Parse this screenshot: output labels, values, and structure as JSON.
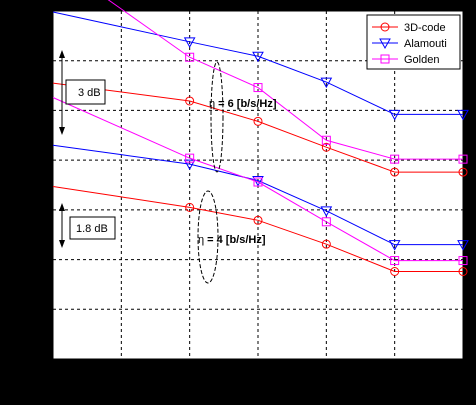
{
  "chart_data": {
    "type": "line",
    "title": "",
    "xlabel": "",
    "ylabel": "",
    "x": [
      1,
      2,
      3,
      4,
      5
    ],
    "xlim": [
      0,
      6
    ],
    "ylim": [
      0,
      7
    ],
    "grid": true,
    "legend_position": "top-right",
    "series": [
      {
        "name": "3D-code",
        "group": "eta6",
        "color": "#ff0000",
        "marker": "circle",
        "values": [
          5.37,
          5.19,
          4.78,
          4.26,
          3.76
        ]
      },
      {
        "name": "Alamouti",
        "group": "eta6",
        "color": "#0000ff",
        "marker": "triangle-down",
        "values": [
          6.68,
          6.38,
          6.09,
          5.57,
          4.92
        ]
      },
      {
        "name": "Golden",
        "group": "eta6",
        "color": "#ff00ff",
        "marker": "square",
        "values": [
          7.04,
          6.07,
          5.46,
          4.4,
          4.02
        ]
      },
      {
        "name": "3D-code",
        "group": "eta4",
        "color": "#ff0000",
        "marker": "circle",
        "values": [
          3.26,
          3.05,
          2.79,
          2.31,
          1.76
        ]
      },
      {
        "name": "Alamouti",
        "group": "eta4",
        "color": "#0000ff",
        "marker": "triangle-down",
        "values": [
          4.11,
          3.92,
          3.59,
          2.98,
          2.3
        ]
      },
      {
        "name": "Golden",
        "group": "eta4",
        "color": "#ff00ff",
        "marker": "square",
        "values": [
          4.65,
          4.04,
          3.56,
          2.76,
          1.98
        ]
      }
    ],
    "legend": [
      {
        "label": "3D-code",
        "color": "#ff0000",
        "marker": "circle"
      },
      {
        "label": "Alamouti",
        "color": "#0000ff",
        "marker": "triangle-down"
      },
      {
        "label": "Golden",
        "color": "#ff00ff",
        "marker": "square"
      }
    ],
    "annotations": {
      "eta6": {
        "prefix": "η",
        "suffix": "= 6 [b/s/Hz]"
      },
      "eta4": {
        "prefix": "η",
        "suffix": "= 4 [b/s/Hz]"
      },
      "gap_top": "3 dB",
      "gap_bottom": "1.8 dB"
    }
  }
}
